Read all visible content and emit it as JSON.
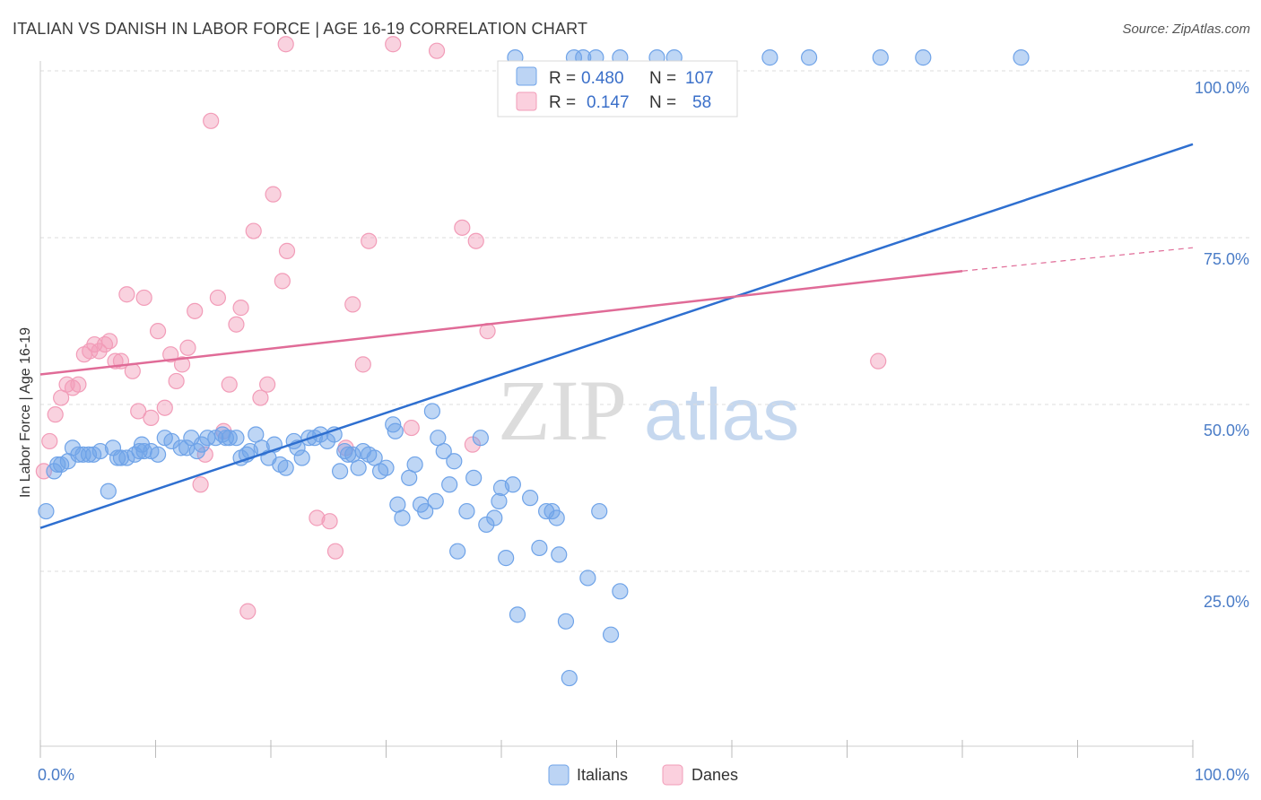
{
  "title": "ITALIAN VS DANISH IN LABOR FORCE | AGE 16-19 CORRELATION CHART",
  "source": "Source: ZipAtlas.com",
  "watermark": {
    "zip": "ZIP",
    "atlas": "atlas"
  },
  "colors": {
    "italians": "#6fa3e8",
    "italians_line": "#2e6fd0",
    "danes": "#f29cb8",
    "danes_line": "#e06b97",
    "tick": "#4a7cc7"
  },
  "legend": {
    "rows": [
      {
        "r_label": "R =",
        "r_value": "0.480",
        "n_label": "N =",
        "n_value": "107"
      },
      {
        "r_label": "R =",
        "r_value": "0.147",
        "n_label": "N =",
        "n_value": "58"
      }
    ]
  },
  "chart_data": {
    "type": "scatter",
    "title": "ITALIAN VS DANISH IN LABOR FORCE | AGE 16-19 CORRELATION CHART",
    "xlabel": "",
    "ylabel": "In Labor Force | Age 16-19",
    "x_tick_labels": [
      "0.0%",
      "100.0%"
    ],
    "y_tick_labels": [
      "100.0%",
      "75.0%",
      "50.0%",
      "25.0%"
    ],
    "xlim": [
      0,
      100
    ],
    "ylim": [
      0,
      100
    ],
    "grid": true,
    "legend_position": "bottom-center",
    "series": [
      {
        "name": "Italians",
        "r": 0.48,
        "n": 107,
        "trend": {
          "x": [
            0,
            100
          ],
          "y": [
            31.5,
            89.0
          ]
        },
        "points": [
          [
            0.5,
            34
          ],
          [
            1.2,
            40
          ],
          [
            1.8,
            41
          ],
          [
            2.4,
            41.5
          ],
          [
            2.8,
            43.5
          ],
          [
            3.3,
            42.5
          ],
          [
            4.2,
            42.5
          ],
          [
            4.6,
            42.5
          ],
          [
            5.2,
            43
          ],
          [
            5.9,
            37
          ],
          [
            6.3,
            43.5
          ],
          [
            6.7,
            42
          ],
          [
            7.0,
            42
          ],
          [
            7.5,
            42
          ],
          [
            8.2,
            42.5
          ],
          [
            8.6,
            43
          ],
          [
            9.0,
            43
          ],
          [
            9.6,
            43
          ],
          [
            10.2,
            42.5
          ],
          [
            10.8,
            45
          ],
          [
            11.4,
            44.5
          ],
          [
            12.2,
            43.5
          ],
          [
            12.7,
            43.5
          ],
          [
            13.1,
            45
          ],
          [
            14.0,
            44
          ],
          [
            14.5,
            45
          ],
          [
            15.2,
            45
          ],
          [
            15.8,
            45.5
          ],
          [
            16.1,
            45
          ],
          [
            16.4,
            45
          ],
          [
            17.0,
            45
          ],
          [
            17.4,
            42
          ],
          [
            17.9,
            42.5
          ],
          [
            18.7,
            45.5
          ],
          [
            19.2,
            43.5
          ],
          [
            19.8,
            42
          ],
          [
            20.3,
            44
          ],
          [
            20.8,
            41
          ],
          [
            21.3,
            40.5
          ],
          [
            22.0,
            44.5
          ],
          [
            22.7,
            42
          ],
          [
            23.3,
            45
          ],
          [
            23.8,
            45
          ],
          [
            24.3,
            45.5
          ],
          [
            24.9,
            44.5
          ],
          [
            25.5,
            45.5
          ],
          [
            26.0,
            40
          ],
          [
            26.7,
            42.5
          ],
          [
            27.1,
            42.5
          ],
          [
            27.6,
            40.5
          ],
          [
            28.0,
            43
          ],
          [
            28.5,
            42.5
          ],
          [
            29.0,
            42
          ],
          [
            29.5,
            40
          ],
          [
            30.0,
            40.5
          ],
          [
            30.6,
            47
          ],
          [
            31.0,
            35
          ],
          [
            31.4,
            33
          ],
          [
            32.0,
            39
          ],
          [
            32.5,
            41
          ],
          [
            33.0,
            35
          ],
          [
            33.4,
            34
          ],
          [
            34.0,
            49
          ],
          [
            34.5,
            45
          ],
          [
            35.0,
            43
          ],
          [
            35.5,
            38
          ],
          [
            36.2,
            28
          ],
          [
            37.0,
            34
          ],
          [
            37.6,
            39
          ],
          [
            38.2,
            45
          ],
          [
            38.7,
            32
          ],
          [
            39.4,
            33
          ],
          [
            39.8,
            35.5
          ],
          [
            40.4,
            27
          ],
          [
            41.0,
            38
          ],
          [
            41.4,
            18.5
          ],
          [
            42.5,
            36
          ],
          [
            43.3,
            28.5
          ],
          [
            43.9,
            34
          ],
          [
            44.4,
            34
          ],
          [
            45.0,
            27.5
          ],
          [
            45.6,
            17.5
          ],
          [
            45.9,
            9
          ],
          [
            47.5,
            24
          ],
          [
            48.5,
            34
          ],
          [
            49.5,
            15.5
          ],
          [
            50.3,
            22
          ],
          [
            40.7,
            98
          ],
          [
            41.2,
            102
          ],
          [
            46.3,
            102
          ],
          [
            47.1,
            102
          ],
          [
            48.2,
            102
          ],
          [
            50.3,
            102
          ],
          [
            53.5,
            102
          ],
          [
            55.0,
            102
          ],
          [
            63.3,
            102
          ],
          [
            66.7,
            102
          ],
          [
            72.9,
            102
          ],
          [
            76.6,
            102
          ],
          [
            85.1,
            102
          ],
          [
            1.5,
            41
          ],
          [
            3.7,
            42.5
          ],
          [
            8.8,
            44
          ],
          [
            13.6,
            43
          ],
          [
            18.2,
            43
          ],
          [
            22.3,
            43.5
          ],
          [
            26.4,
            43
          ],
          [
            30.8,
            46
          ],
          [
            35.9,
            41.5
          ],
          [
            44.8,
            33
          ],
          [
            34.3,
            35.5
          ],
          [
            40.0,
            37.5
          ]
        ]
      },
      {
        "name": "Danes",
        "r": 0.147,
        "n": 58,
        "trend": {
          "x": [
            0,
            80
          ],
          "y": [
            54.5,
            70.0
          ]
        },
        "trend_dashed": {
          "x": [
            80,
            100
          ],
          "y": [
            70.0,
            73.5
          ]
        },
        "points": [
          [
            0.3,
            40
          ],
          [
            0.8,
            44.5
          ],
          [
            1.3,
            48.5
          ],
          [
            1.8,
            51
          ],
          [
            2.3,
            53
          ],
          [
            2.8,
            52.5
          ],
          [
            3.3,
            53
          ],
          [
            3.8,
            57.5
          ],
          [
            4.3,
            58
          ],
          [
            4.7,
            59
          ],
          [
            5.1,
            58
          ],
          [
            5.6,
            59
          ],
          [
            6.0,
            59.5
          ],
          [
            6.5,
            56.5
          ],
          [
            7.0,
            56.5
          ],
          [
            7.5,
            66.5
          ],
          [
            8.0,
            55
          ],
          [
            8.5,
            49
          ],
          [
            9.0,
            66
          ],
          [
            9.6,
            48
          ],
          [
            10.2,
            61
          ],
          [
            10.8,
            49.5
          ],
          [
            11.3,
            57.5
          ],
          [
            11.8,
            53.5
          ],
          [
            12.3,
            56
          ],
          [
            12.8,
            58.5
          ],
          [
            13.4,
            64
          ],
          [
            13.9,
            38
          ],
          [
            14.3,
            42.5
          ],
          [
            14.8,
            92.5
          ],
          [
            15.4,
            66
          ],
          [
            15.9,
            46
          ],
          [
            16.4,
            53
          ],
          [
            17.0,
            62
          ],
          [
            17.4,
            64.5
          ],
          [
            18.0,
            19
          ],
          [
            18.5,
            76
          ],
          [
            19.1,
            51
          ],
          [
            19.7,
            53
          ],
          [
            20.2,
            81.5
          ],
          [
            21.0,
            68.5
          ],
          [
            21.4,
            73
          ],
          [
            24.0,
            33
          ],
          [
            25.1,
            32.5
          ],
          [
            25.6,
            28
          ],
          [
            26.5,
            43.5
          ],
          [
            27.1,
            65
          ],
          [
            28.0,
            56
          ],
          [
            28.5,
            74.5
          ],
          [
            30.6,
            104
          ],
          [
            32.2,
            46.5
          ],
          [
            34.4,
            103
          ],
          [
            36.6,
            76.5
          ],
          [
            37.5,
            44
          ],
          [
            37.8,
            74.5
          ],
          [
            38.8,
            61
          ],
          [
            72.7,
            56.5
          ],
          [
            21.3,
            104
          ]
        ]
      }
    ]
  },
  "bottom_legend": [
    {
      "label": "Italians"
    },
    {
      "label": "Danes"
    }
  ]
}
